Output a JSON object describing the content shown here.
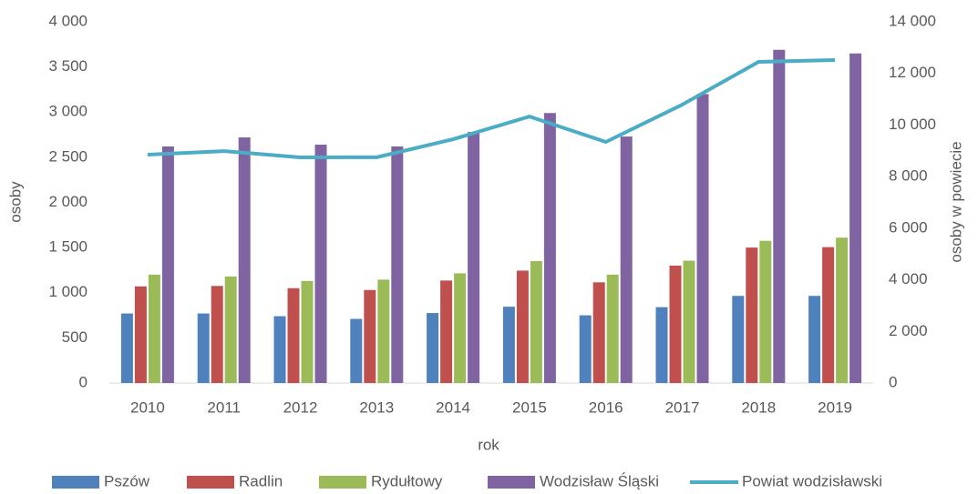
{
  "chart_data": {
    "type": "bar",
    "categories": [
      "2010",
      "2011",
      "2012",
      "2013",
      "2014",
      "2015",
      "2016",
      "2017",
      "2018",
      "2019"
    ],
    "series": [
      {
        "name": "Pszów",
        "color": "#4f81bd",
        "values": [
          770,
          770,
          740,
          710,
          775,
          845,
          750,
          840,
          965,
          965
        ]
      },
      {
        "name": "Radlin",
        "color": "#c0504d",
        "values": [
          1070,
          1075,
          1050,
          1030,
          1135,
          1245,
          1115,
          1300,
          1500,
          1505
        ]
      },
      {
        "name": "Rydułtowy",
        "color": "#9bbb59",
        "values": [
          1200,
          1180,
          1130,
          1145,
          1215,
          1350,
          1200,
          1355,
          1575,
          1610
        ]
      },
      {
        "name": "Wodzisław Śląski",
        "color": "#8064a2",
        "values": [
          2620,
          2720,
          2640,
          2620,
          2780,
          2990,
          2730,
          3200,
          3690,
          3650
        ]
      },
      {
        "name": "Powiat wodzisławski",
        "color": "#4bacc6",
        "type": "line",
        "axis": "y2",
        "values": [
          8850,
          8990,
          8745,
          8750,
          9450,
          10330,
          9345,
          10790,
          12450,
          12520
        ]
      }
    ],
    "xlabel": "rok",
    "ylabel": "osoby",
    "y2label": "osoby w powiecie",
    "ylim": [
      0,
      4000
    ],
    "yticks": [
      0,
      500,
      {
        "value": 1000,
        "label": "1 000"
      },
      {
        "value": 1500,
        "label": "1 500"
      },
      {
        "value": 2000,
        "label": "2 000"
      },
      {
        "value": 2500,
        "label": "2 500"
      },
      {
        "value": 3000,
        "label": "3 000"
      },
      {
        "value": 3500,
        "label": "3 500"
      },
      {
        "value": 4000,
        "label": "4 000"
      }
    ],
    "y2lim": [
      0,
      14000
    ],
    "y2ticks": [
      0,
      {
        "value": 2000,
        "label": "2 000"
      },
      {
        "value": 4000,
        "label": "4 000"
      },
      {
        "value": 6000,
        "label": "6 000"
      },
      {
        "value": 8000,
        "label": "8 000"
      },
      {
        "value": 10000,
        "label": "10 000"
      },
      {
        "value": 12000,
        "label": "12 000"
      },
      {
        "value": 14000,
        "label": "14 000"
      }
    ],
    "legend": "bottom"
  }
}
